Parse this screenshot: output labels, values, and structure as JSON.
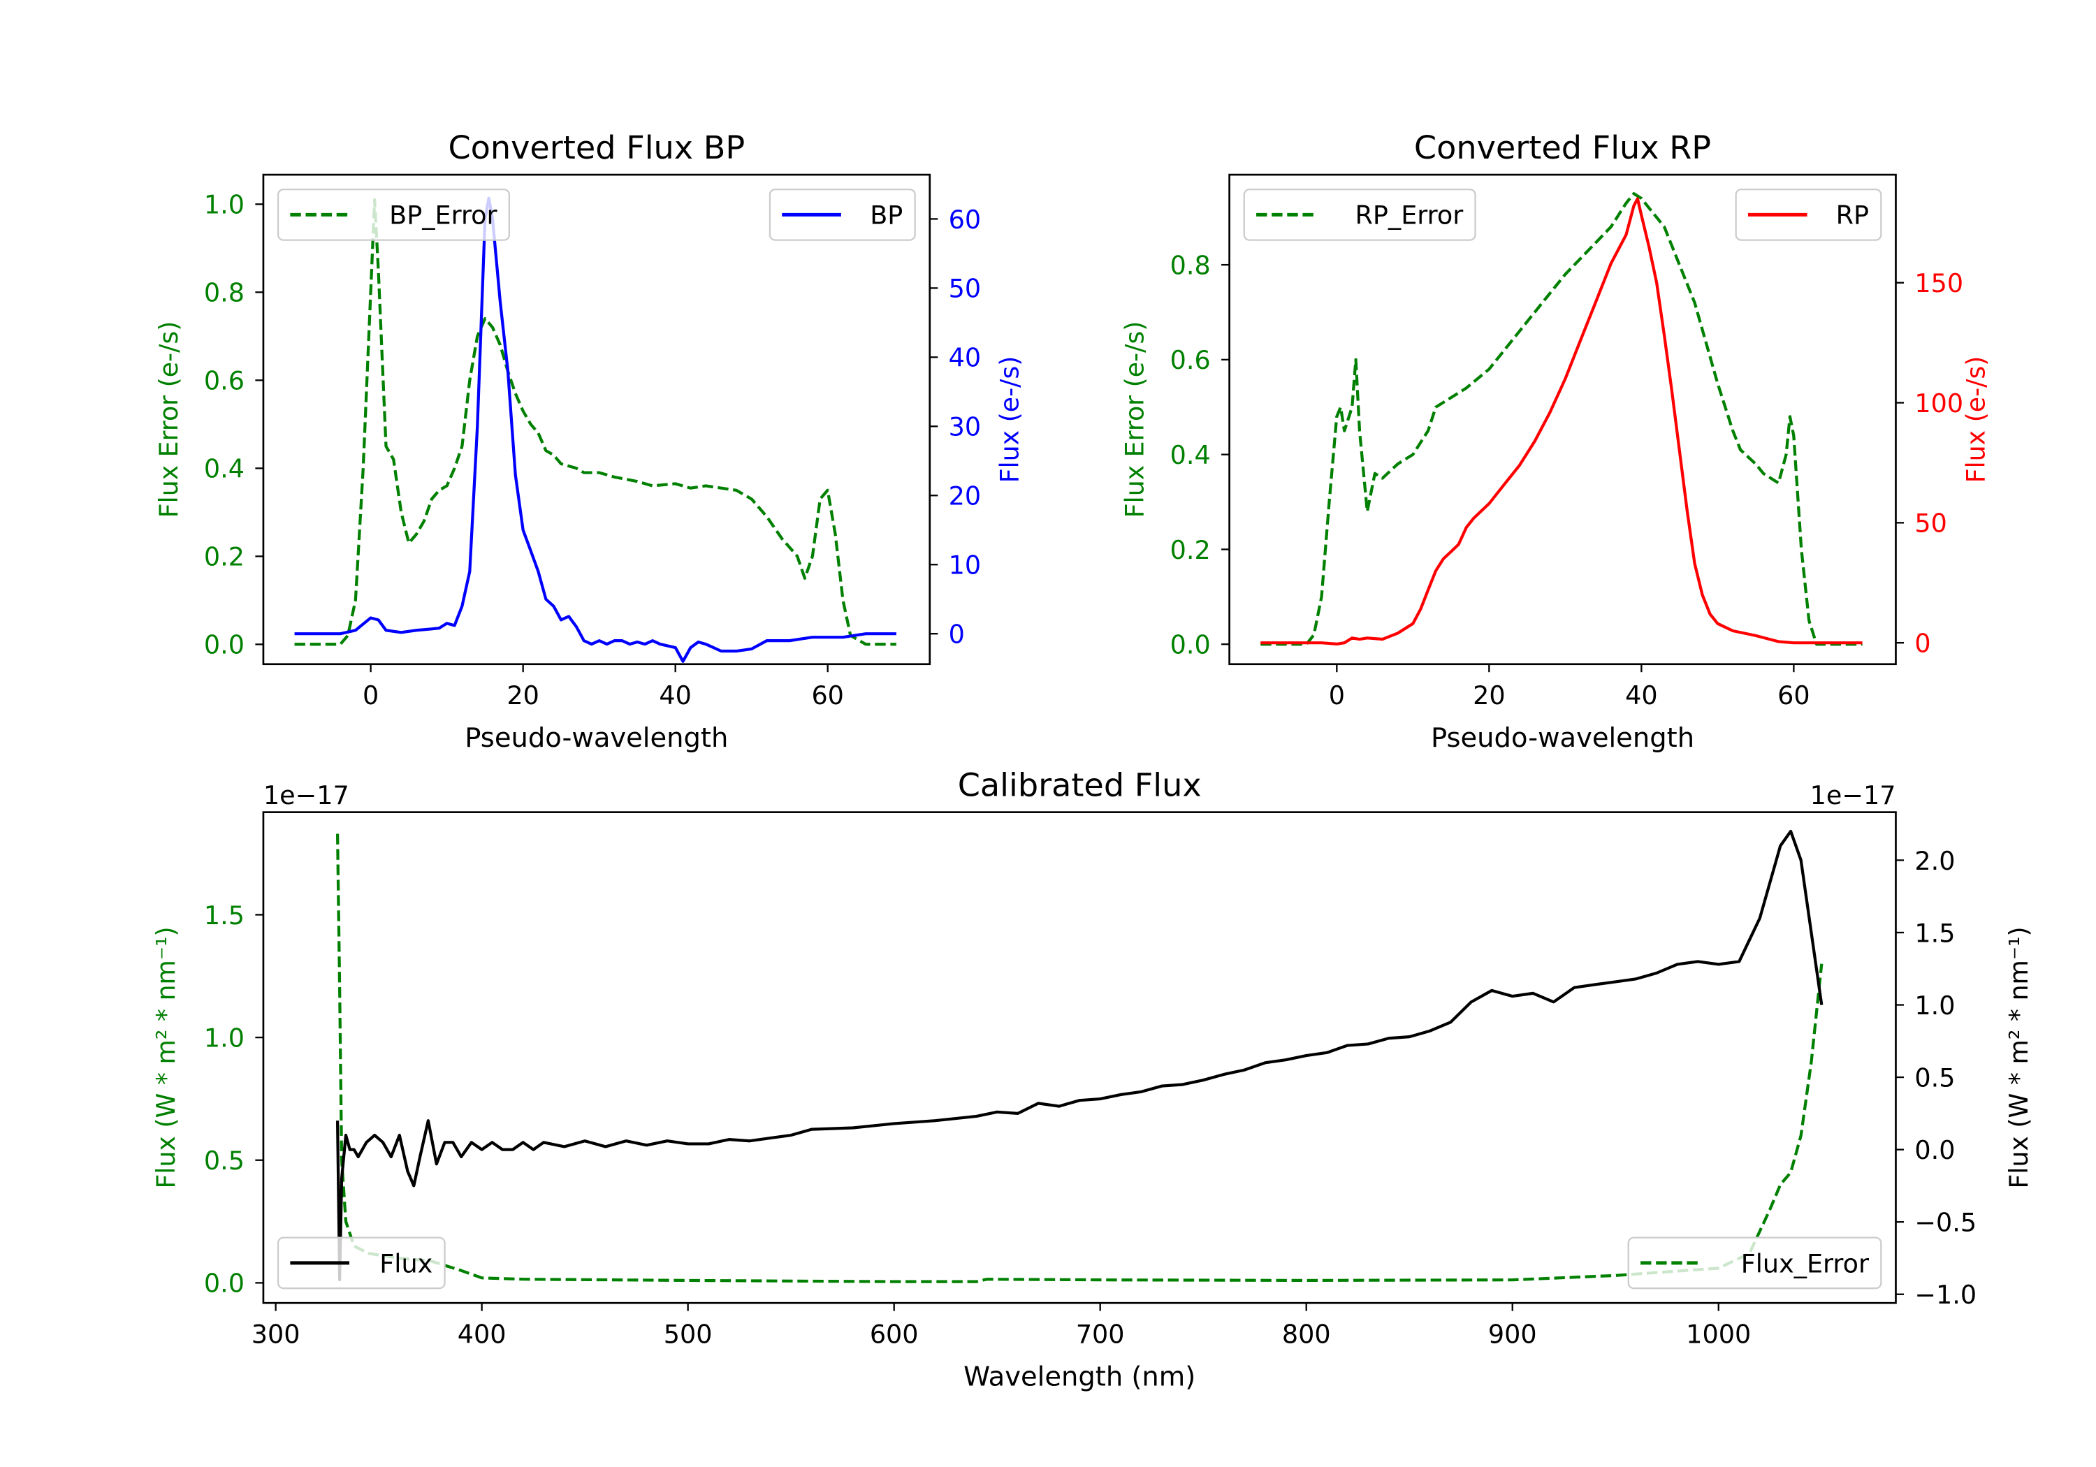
{
  "colors": {
    "green": "#008000",
    "blue": "#0000ff",
    "red": "#ff0000",
    "black": "#000000"
  },
  "chart_data": [
    {
      "type": "line",
      "title": "Converted Flux BP",
      "xlabel": "Pseudo-wavelength",
      "ylabel": "Flux Error (e-/s)",
      "ylabel_right": "Flux (e-/s)",
      "xlim": [
        -14.1,
        73.4
      ],
      "ylim": [
        -0.045,
        1.067
      ],
      "ylim_right": [
        -4.4,
        66.4
      ],
      "xticks": [
        0,
        20,
        40,
        60
      ],
      "yticks": [
        0.0,
        0.2,
        0.4,
        0.6,
        0.8,
        1.0
      ],
      "yticks_right": [
        0,
        10,
        20,
        30,
        40,
        50,
        60
      ],
      "legend": [
        {
          "label": "BP_Error",
          "placement": "upper-left"
        },
        {
          "label": "BP",
          "placement": "upper-right"
        }
      ],
      "series": [
        {
          "name": "BP_Error",
          "axis": "left",
          "style": "dashed",
          "color": "#008000",
          "x": [
            -10,
            -4,
            -3,
            -2,
            -1,
            0,
            0.5,
            1,
            2,
            3,
            4,
            5,
            6,
            7,
            8,
            9,
            10,
            11,
            12,
            13,
            14,
            15,
            16,
            17,
            18,
            19,
            20,
            21,
            22,
            23,
            24,
            25,
            27,
            28,
            30,
            32,
            35,
            37,
            40,
            42,
            44,
            48,
            50,
            52,
            54,
            56,
            57,
            58,
            59,
            60,
            61,
            62,
            63,
            65,
            69
          ],
          "y": [
            0,
            0,
            0.02,
            0.1,
            0.4,
            0.8,
            1.01,
            0.85,
            0.45,
            0.42,
            0.3,
            0.23,
            0.25,
            0.28,
            0.33,
            0.35,
            0.36,
            0.4,
            0.45,
            0.6,
            0.7,
            0.74,
            0.72,
            0.68,
            0.62,
            0.57,
            0.53,
            0.5,
            0.48,
            0.44,
            0.43,
            0.41,
            0.4,
            0.39,
            0.39,
            0.38,
            0.37,
            0.36,
            0.365,
            0.355,
            0.36,
            0.35,
            0.33,
            0.29,
            0.24,
            0.2,
            0.15,
            0.2,
            0.33,
            0.35,
            0.25,
            0.1,
            0.02,
            0,
            0
          ]
        },
        {
          "name": "BP",
          "axis": "right",
          "style": "solid",
          "color": "#0000ff",
          "x": [
            -10,
            -4,
            -2,
            0,
            1,
            2,
            4,
            6,
            8,
            9,
            10,
            11,
            12,
            13,
            14,
            15,
            15.5,
            16,
            17,
            18,
            19,
            20,
            21,
            22,
            23,
            24,
            25,
            26,
            27,
            28,
            29,
            30,
            31,
            32,
            33,
            34,
            35,
            36,
            37,
            38,
            40,
            41,
            42,
            43,
            44,
            46,
            48,
            50,
            52,
            55,
            58,
            60,
            62,
            65,
            69
          ],
          "y": [
            0,
            0,
            0.5,
            2.3,
            2,
            0.5,
            0.2,
            0.5,
            0.7,
            0.8,
            1.5,
            1.2,
            4,
            9,
            30,
            60,
            63,
            60,
            48,
            38,
            23,
            15,
            12,
            9,
            5,
            4,
            2,
            2.5,
            1,
            -1,
            -1.5,
            -1,
            -1.5,
            -1,
            -1,
            -1.5,
            -1.2,
            -1.5,
            -1,
            -1.5,
            -2,
            -4,
            -2,
            -1.2,
            -1.5,
            -2.5,
            -2.5,
            -2.2,
            -1,
            -1,
            -0.5,
            -0.5,
            -0.5,
            0,
            0
          ]
        }
      ]
    },
    {
      "type": "line",
      "title": "Converted Flux RP",
      "xlabel": "Pseudo-wavelength",
      "ylabel": "Flux Error (e-/s)",
      "ylabel_right": "Flux (e-/s)",
      "xlim": [
        -14.1,
        73.4
      ],
      "ylim": [
        -0.042,
        0.99
      ],
      "ylim_right": [
        -8.9,
        195
      ],
      "xticks": [
        0,
        20,
        40,
        60
      ],
      "yticks": [
        0.0,
        0.2,
        0.4,
        0.6,
        0.8
      ],
      "yticks_right": [
        0,
        50,
        100,
        150
      ],
      "legend": [
        {
          "label": "RP_Error",
          "placement": "upper-left"
        },
        {
          "label": "RP",
          "placement": "upper-right"
        }
      ],
      "series": [
        {
          "name": "RP_Error",
          "axis": "left",
          "style": "dashed",
          "color": "#008000",
          "x": [
            -10,
            -4,
            -3,
            -2,
            -1,
            0,
            0.5,
            1,
            2,
            2.5,
            3,
            4,
            5,
            6,
            8,
            10,
            12,
            13,
            15,
            17,
            20,
            22,
            25,
            28,
            30,
            33,
            36,
            38,
            39,
            40,
            41,
            43,
            45,
            47,
            50,
            52,
            53,
            55,
            56,
            58,
            59,
            59.5,
            60,
            61,
            62,
            63,
            69
          ],
          "y": [
            0,
            0,
            0.02,
            0.1,
            0.3,
            0.48,
            0.5,
            0.45,
            0.5,
            0.6,
            0.45,
            0.28,
            0.36,
            0.35,
            0.38,
            0.4,
            0.45,
            0.5,
            0.52,
            0.54,
            0.58,
            0.62,
            0.68,
            0.74,
            0.78,
            0.83,
            0.88,
            0.93,
            0.95,
            0.94,
            0.92,
            0.88,
            0.8,
            0.72,
            0.55,
            0.45,
            0.41,
            0.38,
            0.36,
            0.34,
            0.4,
            0.48,
            0.44,
            0.2,
            0.05,
            0,
            0
          ]
        },
        {
          "name": "RP",
          "axis": "right",
          "style": "solid",
          "color": "#ff0000",
          "x": [
            -10,
            -2,
            0,
            1,
            2,
            3,
            4,
            6,
            8,
            10,
            11,
            12,
            13,
            14,
            15,
            16,
            17,
            18,
            20,
            22,
            24,
            26,
            28,
            30,
            32,
            34,
            36,
            38,
            39,
            39.5,
            40,
            41,
            42,
            43,
            44,
            45,
            46,
            47,
            48,
            49,
            50,
            52,
            55,
            58,
            60,
            69
          ],
          "y": [
            0,
            0,
            -0.5,
            0,
            2,
            1.5,
            2,
            1.5,
            4,
            8,
            14,
            22,
            30,
            35,
            38,
            41,
            48,
            52,
            58,
            66,
            74,
            84,
            96,
            110,
            126,
            142,
            158,
            170,
            182,
            185,
            178,
            165,
            150,
            128,
            105,
            80,
            55,
            33,
            20,
            12,
            8,
            5,
            3,
            0.5,
            0,
            0
          ]
        }
      ]
    },
    {
      "type": "line",
      "title": "Calibrated Flux",
      "xlabel": "Wavelength (nm)",
      "ylabel": "Flux (W * m² * nm⁻¹)",
      "ylabel_right": "Flux (W * m² * nm⁻¹)",
      "offset_left": "1e−17",
      "offset_right": "1e−17",
      "xlim": [
        294,
        1086
      ],
      "ylim": [
        -0.082,
        1.918
      ],
      "ylim_right": [
        -1.06,
        2.332
      ],
      "xticks": [
        300,
        400,
        500,
        600,
        700,
        800,
        900,
        1000
      ],
      "yticks": [
        0.0,
        0.5,
        1.0,
        1.5
      ],
      "yticks_right": [
        -1.0,
        -0.5,
        0.0,
        0.5,
        1.0,
        1.5,
        2.0
      ],
      "legend": [
        {
          "label": "Flux",
          "placement": "lower-left"
        },
        {
          "label": "Flux_Error",
          "placement": "lower-right"
        }
      ],
      "series": [
        {
          "name": "Flux_Error",
          "axis": "left",
          "style": "dashed",
          "color": "#008000",
          "x": [
            330,
            331,
            332,
            334,
            338,
            345,
            360,
            375,
            390,
            400,
            420,
            500,
            600,
            640,
            645,
            700,
            800,
            900,
            950,
            1000,
            1015,
            1025,
            1030,
            1035,
            1040,
            1045,
            1050
          ],
          "y": [
            1.83,
            1.2,
            0.5,
            0.25,
            0.15,
            0.12,
            0.1,
            0.09,
            0.05,
            0.02,
            0.015,
            0.01,
            0.005,
            0.005,
            0.015,
            0.012,
            0.01,
            0.012,
            0.03,
            0.06,
            0.12,
            0.3,
            0.4,
            0.45,
            0.6,
            0.9,
            1.3
          ]
        },
        {
          "name": "Flux",
          "axis": "right",
          "style": "solid",
          "color": "#000000",
          "x": [
            330,
            331,
            332,
            334,
            336,
            338,
            340,
            344,
            348,
            352,
            356,
            360,
            364,
            367,
            370,
            374,
            378,
            382,
            386,
            390,
            395,
            400,
            405,
            410,
            415,
            420,
            425,
            430,
            440,
            450,
            460,
            470,
            480,
            490,
            500,
            510,
            520,
            530,
            540,
            550,
            560,
            580,
            600,
            620,
            640,
            650,
            660,
            670,
            680,
            690,
            700,
            710,
            720,
            730,
            740,
            750,
            760,
            770,
            780,
            790,
            800,
            810,
            820,
            830,
            840,
            850,
            860,
            870,
            880,
            890,
            900,
            910,
            920,
            930,
            940,
            950,
            960,
            970,
            980,
            990,
            1000,
            1010,
            1020,
            1030,
            1035,
            1040,
            1045,
            1050
          ],
          "y": [
            0.2,
            -0.9,
            -0.2,
            0.1,
            0.0,
            0.0,
            -0.05,
            0.05,
            0.1,
            0.05,
            -0.05,
            0.1,
            -0.15,
            -0.25,
            -0.05,
            0.2,
            -0.1,
            0.05,
            0.05,
            -0.05,
            0.05,
            0,
            0.05,
            0,
            0,
            0.05,
            0,
            0.05,
            0.02,
            0.06,
            0.02,
            0.06,
            0.03,
            0.06,
            0.04,
            0.04,
            0.07,
            0.06,
            0.08,
            0.1,
            0.14,
            0.15,
            0.18,
            0.2,
            0.23,
            0.26,
            0.25,
            0.32,
            0.3,
            0.34,
            0.35,
            0.38,
            0.4,
            0.44,
            0.45,
            0.48,
            0.52,
            0.55,
            0.6,
            0.62,
            0.65,
            0.67,
            0.72,
            0.73,
            0.77,
            0.78,
            0.82,
            0.88,
            1.02,
            1.1,
            1.06,
            1.08,
            1.02,
            1.12,
            1.14,
            1.16,
            1.18,
            1.22,
            1.28,
            1.3,
            1.28,
            1.3,
            1.6,
            2.1,
            2.2,
            2.0,
            1.5,
            1.0
          ]
        }
      ]
    }
  ]
}
